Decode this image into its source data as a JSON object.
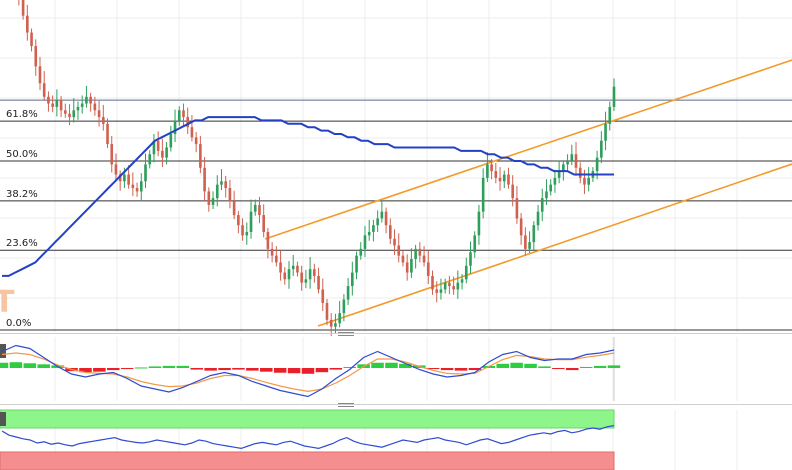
{
  "chart_data": [
    {
      "type": "candlestick",
      "panel": "price",
      "title": "",
      "xlabel": "",
      "ylabel": "",
      "ylim": [
        0,
        1.12
      ],
      "grid": true,
      "watermark_text": "T",
      "fib_levels": [
        {
          "label": "61.8%",
          "value": 0.618
        },
        {
          "label": "50.0%",
          "value": 0.5
        },
        {
          "label": "38.2%",
          "value": 0.382
        },
        {
          "label": "23.6%",
          "value": 0.236
        },
        {
          "label": "0.0%",
          "value": 0
        }
      ],
      "resistance_level": 0.68,
      "colors": {
        "up": "#2e9e5b",
        "down": "#d0604f",
        "ma": "#2341c4",
        "channel": "#f29b2b",
        "fib": "#333333",
        "grid": "#ececec"
      },
      "closes": [
        1.11,
        1.09,
        1.06,
        1.02,
        0.98,
        0.93,
        0.88,
        0.84,
        0.78,
        0.73,
        0.69,
        0.67,
        0.66,
        0.68,
        0.65,
        0.64,
        0.63,
        0.65,
        0.66,
        0.67,
        0.69,
        0.67,
        0.65,
        0.63,
        0.61,
        0.55,
        0.49,
        0.46,
        0.44,
        0.46,
        0.43,
        0.42,
        0.41,
        0.44,
        0.49,
        0.52,
        0.56,
        0.53,
        0.51,
        0.54,
        0.58,
        0.62,
        0.65,
        0.63,
        0.6,
        0.57,
        0.55,
        0.48,
        0.41,
        0.37,
        0.39,
        0.43,
        0.44,
        0.42,
        0.38,
        0.34,
        0.31,
        0.28,
        0.29,
        0.35,
        0.37,
        0.34,
        0.29,
        0.24,
        0.22,
        0.2,
        0.17,
        0.15,
        0.18,
        0.19,
        0.17,
        0.14,
        0.15,
        0.18,
        0.16,
        0.12,
        0.08,
        0.03,
        0.01,
        0.02,
        0.05,
        0.09,
        0.13,
        0.17,
        0.22,
        0.24,
        0.28,
        0.29,
        0.31,
        0.33,
        0.35,
        0.31,
        0.27,
        0.25,
        0.22,
        0.2,
        0.17,
        0.21,
        0.24,
        0.22,
        0.2,
        0.16,
        0.12,
        0.11,
        0.12,
        0.14,
        0.13,
        0.12,
        0.14,
        0.15,
        0.19,
        0.23,
        0.28,
        0.35,
        0.45,
        0.49,
        0.47,
        0.45,
        0.44,
        0.46,
        0.43,
        0.39,
        0.33,
        0.28,
        0.24,
        0.26,
        0.31,
        0.35,
        0.39,
        0.41,
        0.43,
        0.45,
        0.47,
        0.49,
        0.5,
        0.52,
        0.48,
        0.45,
        0.43,
        0.45,
        0.47,
        0.51,
        0.56,
        0.61,
        0.66,
        0.72
      ],
      "ma_values": [
        0.16,
        0.16,
        0.17,
        0.18,
        0.19,
        0.2,
        0.22,
        0.24,
        0.26,
        0.28,
        0.3,
        0.32,
        0.34,
        0.36,
        0.38,
        0.4,
        0.42,
        0.44,
        0.46,
        0.48,
        0.5,
        0.52,
        0.54,
        0.56,
        0.57,
        0.58,
        0.59,
        0.6,
        0.61,
        0.62,
        0.62,
        0.63,
        0.63,
        0.63,
        0.63,
        0.63,
        0.63,
        0.63,
        0.63,
        0.62,
        0.62,
        0.62,
        0.62,
        0.61,
        0.61,
        0.61,
        0.6,
        0.6,
        0.59,
        0.59,
        0.58,
        0.58,
        0.57,
        0.57,
        0.56,
        0.56,
        0.55,
        0.55,
        0.55,
        0.54,
        0.54,
        0.54,
        0.54,
        0.54,
        0.54,
        0.54,
        0.54,
        0.54,
        0.54,
        0.53,
        0.53,
        0.53,
        0.53,
        0.52,
        0.52,
        0.51,
        0.51,
        0.5,
        0.5,
        0.49,
        0.49,
        0.48,
        0.48,
        0.47,
        0.47,
        0.47,
        0.46,
        0.46,
        0.46,
        0.46,
        0.46,
        0.46,
        0.46
      ]
    },
    {
      "type": "line+bar",
      "panel": "oscillator",
      "title": "",
      "ylim": [
        -1.05,
        1.05
      ],
      "colors": {
        "hist_up": "#2ecc40",
        "hist_down": "#e8202a",
        "line1": "#2e4bd1",
        "line2": "#f2994a"
      },
      "line1": [
        0.55,
        0.75,
        0.65,
        0.35,
        0.05,
        -0.2,
        -0.3,
        -0.2,
        -0.15,
        -0.35,
        -0.6,
        -0.7,
        -0.8,
        -0.65,
        -0.45,
        -0.25,
        -0.15,
        -0.25,
        -0.45,
        -0.6,
        -0.75,
        -0.85,
        -0.95,
        -0.7,
        -0.35,
        -0.05,
        0.35,
        0.55,
        0.35,
        0.15,
        -0.05,
        -0.2,
        -0.3,
        -0.25,
        -0.15,
        0.2,
        0.45,
        0.55,
        0.35,
        0.25,
        0.3,
        0.3,
        0.45,
        0.5,
        0.6
      ],
      "line2": [
        0.45,
        0.5,
        0.45,
        0.3,
        0.1,
        -0.05,
        -0.15,
        -0.18,
        -0.2,
        -0.3,
        -0.45,
        -0.55,
        -0.62,
        -0.6,
        -0.5,
        -0.35,
        -0.25,
        -0.25,
        -0.35,
        -0.48,
        -0.6,
        -0.7,
        -0.78,
        -0.7,
        -0.5,
        -0.25,
        0.05,
        0.3,
        0.3,
        0.2,
        0.05,
        -0.08,
        -0.18,
        -0.2,
        -0.18,
        0.05,
        0.28,
        0.42,
        0.38,
        0.3,
        0.28,
        0.28,
        0.36,
        0.42,
        0.5
      ],
      "histogram": [
        0.5,
        0.55,
        0.45,
        0.35,
        0.25,
        -0.3,
        -0.4,
        -0.35,
        -0.2,
        -0.1,
        0.05,
        0.15,
        0.2,
        0.2,
        -0.15,
        -0.25,
        -0.2,
        -0.15,
        -0.25,
        -0.35,
        -0.45,
        -0.5,
        -0.55,
        -0.4,
        -0.15,
        0.1,
        0.35,
        0.5,
        0.5,
        0.4,
        0.25,
        -0.1,
        -0.2,
        -0.25,
        -0.2,
        0.2,
        0.4,
        0.5,
        0.4,
        0.15,
        -0.1,
        -0.2,
        0.1,
        0.2,
        0.25
      ]
    },
    {
      "type": "line",
      "panel": "rsi",
      "title": "",
      "ylim": [
        0,
        100
      ],
      "bands": [
        {
          "from": 70,
          "to": 100,
          "color": "#8ef58b"
        },
        {
          "from": 0,
          "to": 30,
          "color": "#f58f8f"
        }
      ],
      "colors": {
        "line": "#2e4bd1"
      },
      "values": [
        65,
        58,
        55,
        52,
        50,
        45,
        47,
        43,
        45,
        42,
        40,
        44,
        46,
        48,
        50,
        52,
        54,
        50,
        48,
        46,
        45,
        47,
        50,
        48,
        46,
        44,
        42,
        45,
        50,
        48,
        44,
        42,
        40,
        38,
        36,
        40,
        44,
        46,
        44,
        42,
        46,
        48,
        44,
        40,
        38,
        36,
        40,
        44,
        50,
        54,
        48,
        44,
        42,
        40,
        38,
        42,
        46,
        50,
        48,
        46,
        50,
        52,
        54,
        50,
        48,
        46,
        42,
        46,
        50,
        52,
        48,
        44,
        46,
        50,
        54,
        58,
        60,
        62,
        60,
        64,
        66,
        62,
        64,
        68,
        70,
        68,
        72,
        74
      ]
    }
  ]
}
